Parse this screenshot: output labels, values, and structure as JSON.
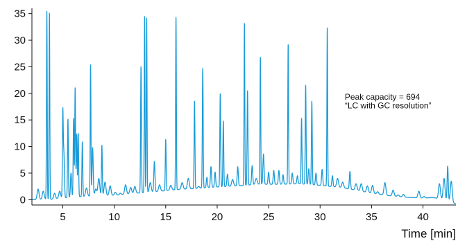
{
  "chart_data": {
    "type": "line",
    "title": "",
    "xlabel": "Time [min]",
    "ylabel": "",
    "xlim": [
      2.0,
      43.2
    ],
    "ylim": [
      -1,
      36
    ],
    "x_ticks": [
      5,
      10,
      15,
      20,
      25,
      30,
      35,
      40
    ],
    "x_tick_labels": [
      "5",
      "10",
      "15",
      "20",
      "25",
      "30",
      "35",
      "40"
    ],
    "y_ticks": [
      0,
      5,
      10,
      15,
      20,
      25,
      30,
      35
    ],
    "y_tick_labels": [
      "0",
      "5",
      "10",
      "15",
      "20",
      "25",
      "30",
      "35"
    ],
    "grid": false,
    "line_color": "#1a9bd7",
    "annotations": [
      {
        "text": "Peak capacity = 694",
        "x": 32.4,
        "y": 18.8
      },
      {
        "text": "“LC with GC resolution”",
        "x": 32.4,
        "y": 17.2
      }
    ],
    "baseline": [
      [
        2.0,
        0.0
      ],
      [
        4.0,
        0.1
      ],
      [
        6.0,
        0.5
      ],
      [
        8.0,
        0.7
      ],
      [
        10.0,
        0.8
      ],
      [
        12.0,
        1.2
      ],
      [
        14.0,
        1.5
      ],
      [
        16.0,
        1.9
      ],
      [
        18.0,
        2.1
      ],
      [
        20.0,
        2.4
      ],
      [
        22.0,
        2.6
      ],
      [
        24.0,
        2.9
      ],
      [
        26.0,
        2.9
      ],
      [
        28.0,
        3.0
      ],
      [
        30.0,
        2.7
      ],
      [
        32.0,
        2.3
      ],
      [
        33.5,
        1.8
      ],
      [
        35.0,
        1.2
      ],
      [
        36.5,
        0.8
      ],
      [
        38.0,
        0.5
      ],
      [
        40.0,
        0.3
      ],
      [
        41.0,
        0.4
      ],
      [
        42.0,
        0.0
      ],
      [
        43.2,
        -0.8
      ]
    ],
    "peaks": [
      [
        2.6,
        2.0
      ],
      [
        3.1,
        1.6
      ],
      [
        3.45,
        35.5
      ],
      [
        3.7,
        35.3
      ],
      [
        4.2,
        1.2
      ],
      [
        4.7,
        1.6
      ],
      [
        5.0,
        15.5
      ],
      [
        5.1,
        8.8
      ],
      [
        5.5,
        15.2
      ],
      [
        5.8,
        5.0
      ],
      [
        6.05,
        15.3
      ],
      [
        6.2,
        21.0
      ],
      [
        6.35,
        12.3
      ],
      [
        6.5,
        12.5
      ],
      [
        6.9,
        10.9
      ],
      [
        7.3,
        2.2
      ],
      [
        7.7,
        25.5
      ],
      [
        7.9,
        9.8
      ],
      [
        8.2,
        2.0
      ],
      [
        8.5,
        4.0
      ],
      [
        8.8,
        10.2
      ],
      [
        9.1,
        3.3
      ],
      [
        9.6,
        2.6
      ],
      [
        10.1,
        1.4
      ],
      [
        10.6,
        1.2
      ],
      [
        11.1,
        2.8
      ],
      [
        11.6,
        2.3
      ],
      [
        12.0,
        2.5
      ],
      [
        12.6,
        25.0
      ],
      [
        12.95,
        34.5
      ],
      [
        13.15,
        34.2
      ],
      [
        13.5,
        3.2
      ],
      [
        13.9,
        7.2
      ],
      [
        14.4,
        2.8
      ],
      [
        15.0,
        11.3
      ],
      [
        15.5,
        2.7
      ],
      [
        16.0,
        34.3
      ],
      [
        16.6,
        3.2
      ],
      [
        17.2,
        4.0
      ],
      [
        17.8,
        18.5
      ],
      [
        18.2,
        2.5
      ],
      [
        18.6,
        24.7
      ],
      [
        19.0,
        4.2
      ],
      [
        19.4,
        6.2
      ],
      [
        19.8,
        5.2
      ],
      [
        20.3,
        20.0
      ],
      [
        20.6,
        14.8
      ],
      [
        21.0,
        4.8
      ],
      [
        21.5,
        3.8
      ],
      [
        22.0,
        6.2
      ],
      [
        22.65,
        33.2
      ],
      [
        22.95,
        20.5
      ],
      [
        23.4,
        6.4
      ],
      [
        23.8,
        4.0
      ],
      [
        24.2,
        26.8
      ],
      [
        24.5,
        8.6
      ],
      [
        25.0,
        5.2
      ],
      [
        25.5,
        5.5
      ],
      [
        26.0,
        5.5
      ],
      [
        26.4,
        4.7
      ],
      [
        26.9,
        29.3
      ],
      [
        27.3,
        5.0
      ],
      [
        27.8,
        4.5
      ],
      [
        28.2,
        15.3
      ],
      [
        28.6,
        21.5
      ],
      [
        28.9,
        5.8
      ],
      [
        29.2,
        18.5
      ],
      [
        29.6,
        5.0
      ],
      [
        30.2,
        5.7
      ],
      [
        30.7,
        32.5
      ],
      [
        31.2,
        4.5
      ],
      [
        31.7,
        4.0
      ],
      [
        32.2,
        3.3
      ],
      [
        32.9,
        5.3
      ],
      [
        33.5,
        3.0
      ],
      [
        34.0,
        3.0
      ],
      [
        34.6,
        2.6
      ],
      [
        35.1,
        2.7
      ],
      [
        35.6,
        1.5
      ],
      [
        36.3,
        3.2
      ],
      [
        37.1,
        1.8
      ],
      [
        37.6,
        0.9
      ],
      [
        38.1,
        1.0
      ],
      [
        39.6,
        1.6
      ],
      [
        40.1,
        0.6
      ],
      [
        41.6,
        3.0
      ],
      [
        42.05,
        4.0
      ],
      [
        42.4,
        6.3
      ],
      [
        42.75,
        3.5
      ]
    ]
  }
}
